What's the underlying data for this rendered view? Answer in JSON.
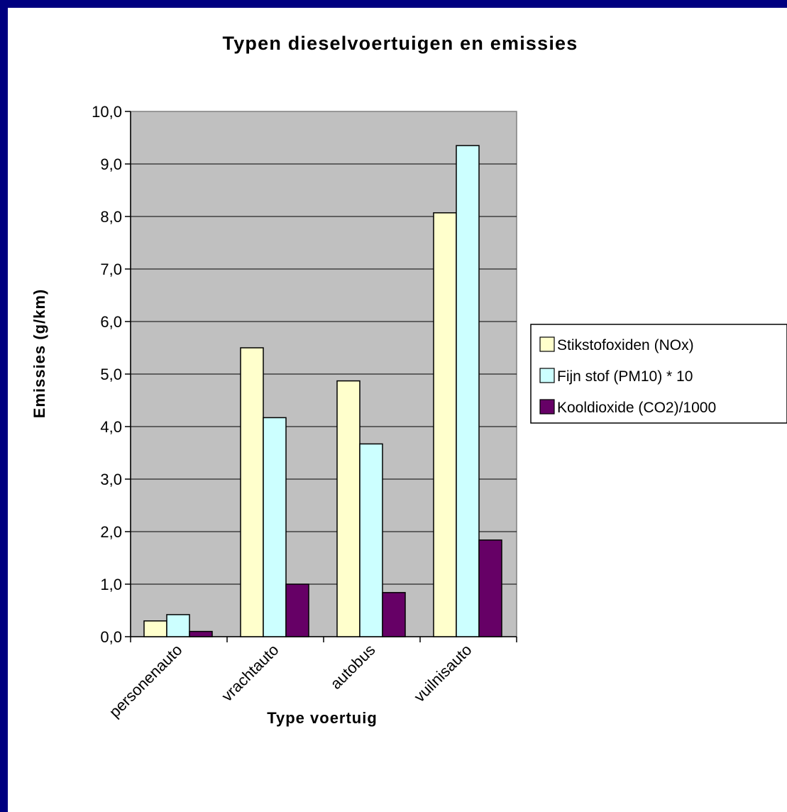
{
  "chart_data": {
    "type": "bar",
    "title": "Typen dieselvoertuigen en emissies",
    "xlabel": "Type voertuig",
    "ylabel": "Emissies (g/km)",
    "ylim": [
      0,
      10
    ],
    "ytick_labels": [
      "0,0",
      "1,0",
      "2,0",
      "3,0",
      "4,0",
      "5,0",
      "6,0",
      "7,0",
      "8,0",
      "9,0",
      "10,0"
    ],
    "categories": [
      "personenauto",
      "vrachtauto",
      "autobus",
      "vuilnisauto"
    ],
    "series": [
      {
        "name": "Stikstofoxiden (NOx)",
        "values": [
          0.3,
          5.5,
          4.87,
          8.07
        ],
        "color": "#ffffcc"
      },
      {
        "name": "Fijn stof (PM10) * 10",
        "values": [
          0.42,
          4.17,
          3.67,
          9.35
        ],
        "color": "#ccffff"
      },
      {
        "name": "Kooldioxide (CO2)/1000",
        "values": [
          0.1,
          1.0,
          0.84,
          1.84
        ],
        "color": "#660066"
      }
    ],
    "grid": true,
    "plot_background": "#c0c0c0",
    "legend_position": "right"
  }
}
